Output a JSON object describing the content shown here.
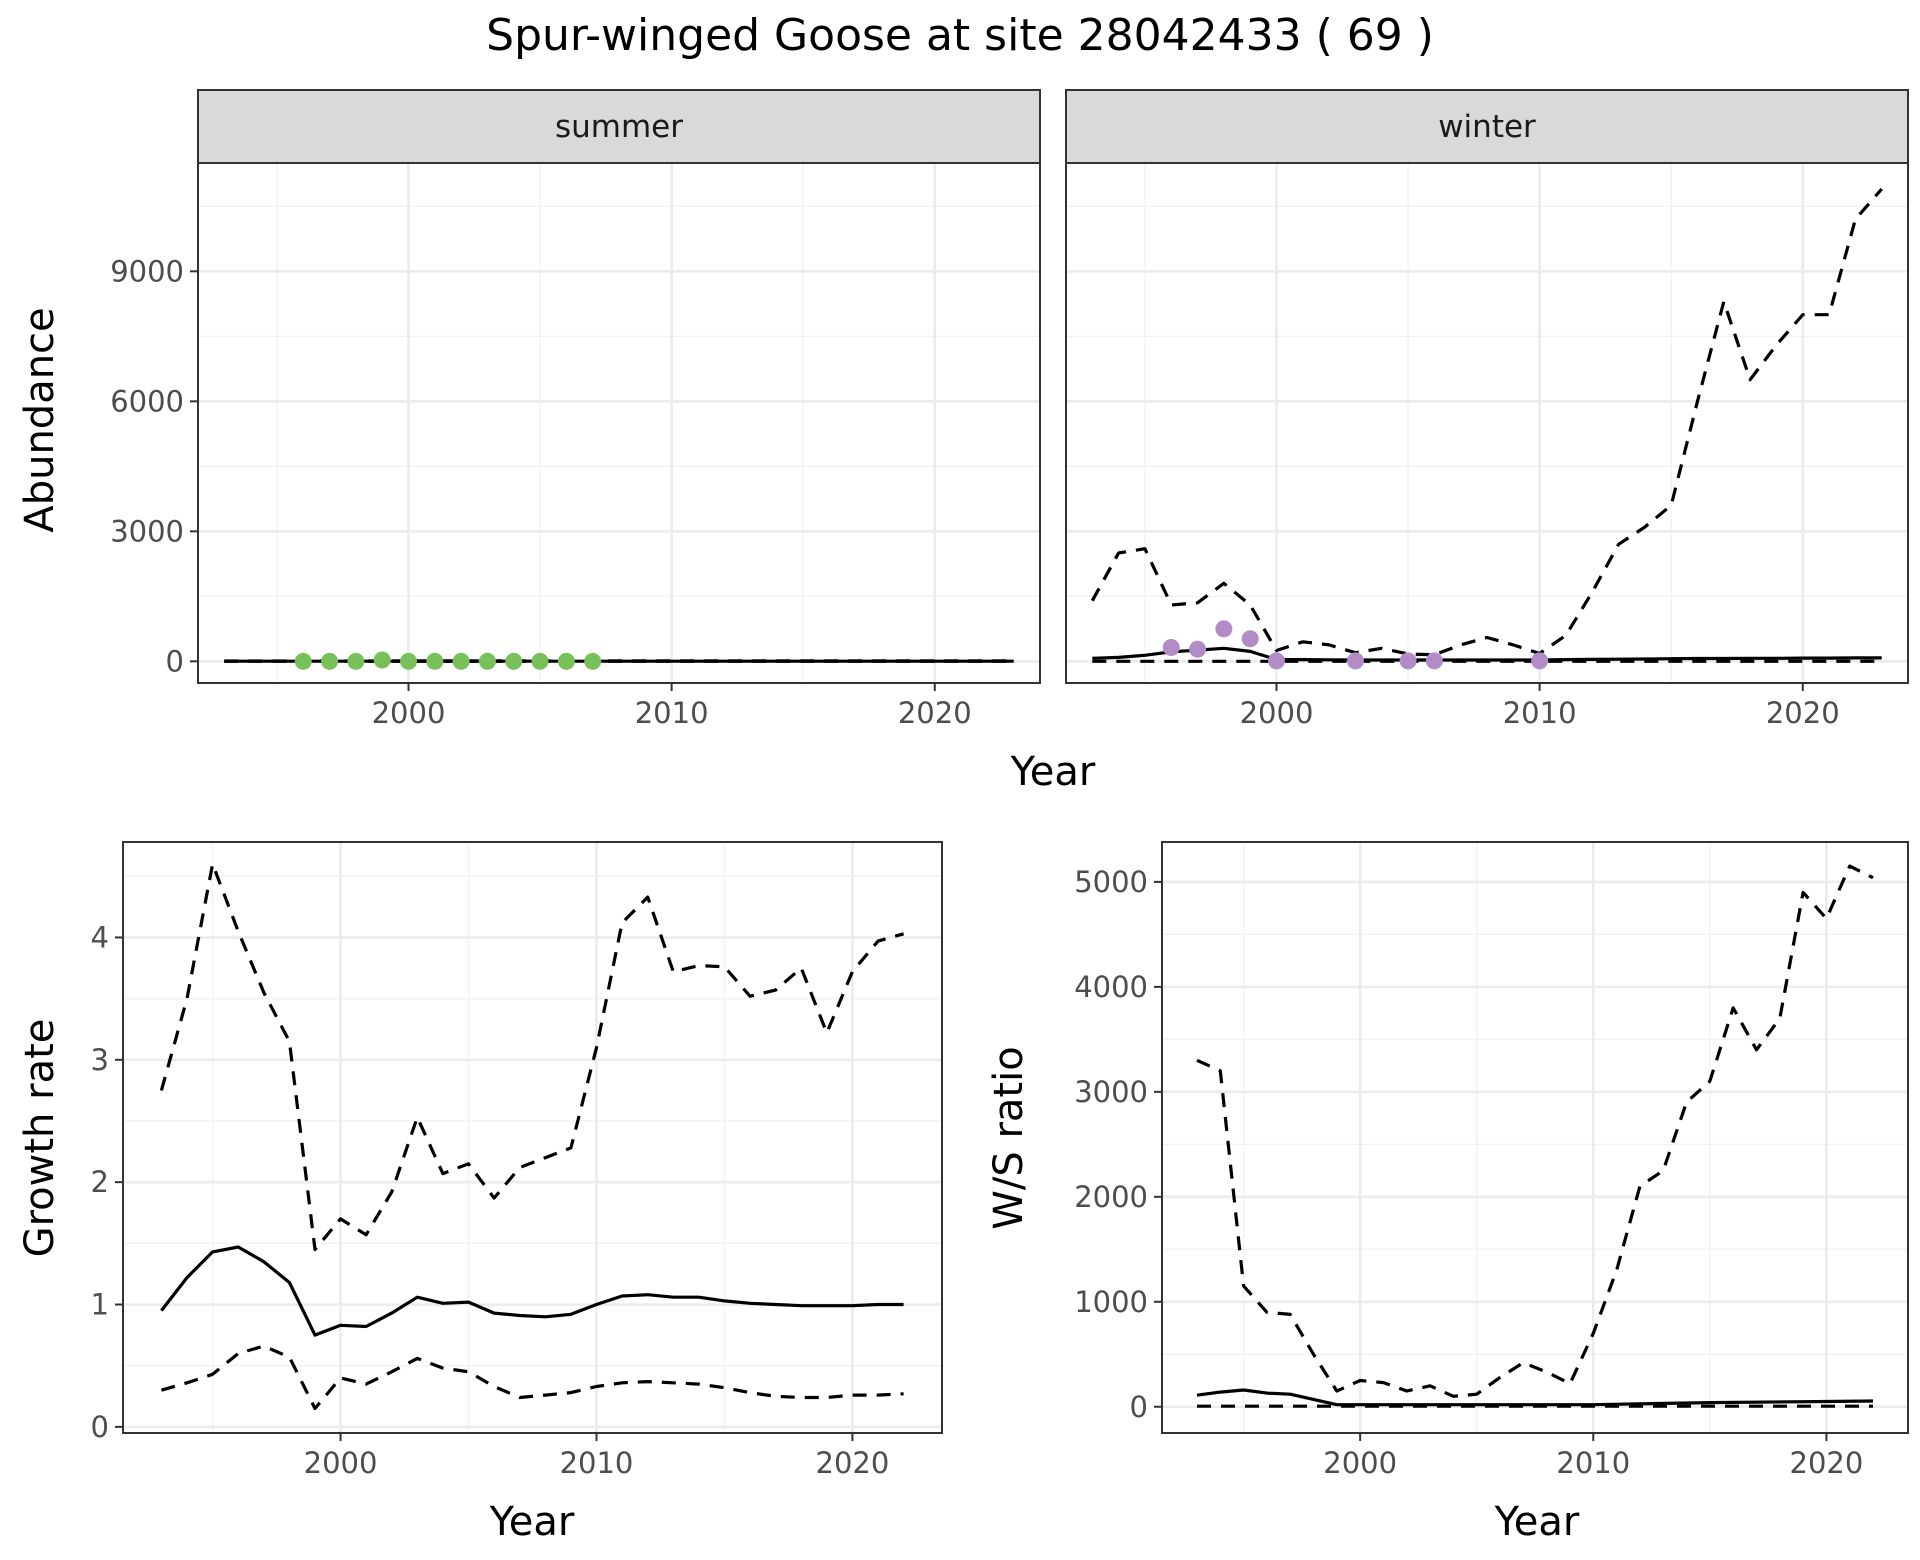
{
  "title": "Spur-winged Goose at site 28042433 ( 69 )",
  "colors": {
    "summer_points": "#78c15a",
    "winter_points": "#b28cc6",
    "lines": "#000000"
  },
  "chart_data": [
    {
      "id": "abundance-summer",
      "type": "line",
      "facet": "summer",
      "ylabel": "Abundance",
      "xlabel": "Year",
      "xlim": [
        1992,
        2024
      ],
      "ylim": [
        -500,
        11500
      ],
      "x_ticks": [
        2000,
        2010,
        2020
      ],
      "y_ticks": [
        0,
        3000,
        6000,
        9000
      ],
      "grid": true,
      "series": [
        {
          "style": "estimate",
          "x": [
            1993,
            1995,
            2000,
            2005,
            2010,
            2015,
            2020,
            2023
          ],
          "y": [
            2,
            2,
            3,
            3,
            3,
            3,
            3,
            3
          ]
        },
        {
          "style": "ci-upper",
          "x": [
            1993,
            1995,
            2000,
            2005,
            2010,
            2015,
            2020,
            2023
          ],
          "y": [
            8,
            8,
            9,
            9,
            9,
            10,
            10,
            10
          ]
        },
        {
          "style": "ci-lower",
          "x": [
            1993,
            2023
          ],
          "y": [
            0,
            0
          ]
        },
        {
          "style": "observed",
          "x": [
            1996,
            1997,
            1998,
            1999,
            2000,
            2001,
            2002,
            2003,
            2004,
            2005,
            2006,
            2007
          ],
          "y": [
            0,
            0,
            0,
            30,
            0,
            0,
            0,
            0,
            0,
            0,
            0,
            0
          ]
        }
      ]
    },
    {
      "id": "abundance-winter",
      "type": "line",
      "facet": "winter",
      "xlabel": "Year",
      "xlim": [
        1992,
        2024
      ],
      "ylim": [
        -500,
        11500
      ],
      "x_ticks": [
        2000,
        2010,
        2020
      ],
      "y_ticks": [
        0,
        3000,
        6000,
        9000
      ],
      "grid": true,
      "series": [
        {
          "style": "estimate",
          "x": [
            1993,
            1994,
            1995,
            1996,
            1997,
            1998,
            1999,
            2000,
            2001,
            2002,
            2003,
            2004,
            2005,
            2006,
            2007,
            2008,
            2009,
            2010,
            2011,
            2012,
            2013,
            2014,
            2015,
            2016,
            2017,
            2018,
            2019,
            2020,
            2021,
            2022,
            2023
          ],
          "y": [
            70,
            90,
            140,
            220,
            260,
            300,
            230,
            40,
            40,
            35,
            30,
            30,
            30,
            30,
            30,
            30,
            30,
            30,
            40,
            45,
            50,
            55,
            60,
            65,
            65,
            70,
            70,
            75,
            75,
            80,
            80
          ]
        },
        {
          "style": "ci-upper",
          "x": [
            1993,
            1994,
            1995,
            1996,
            1997,
            1998,
            1999,
            2000,
            2001,
            2002,
            2003,
            2004,
            2005,
            2006,
            2007,
            2008,
            2009,
            2010,
            2011,
            2012,
            2013,
            2014,
            2015,
            2016,
            2017,
            2018,
            2019,
            2020,
            2021,
            2022,
            2023
          ],
          "y": [
            1400,
            2500,
            2600,
            1300,
            1350,
            1800,
            1300,
            250,
            450,
            380,
            200,
            300,
            170,
            150,
            380,
            550,
            380,
            180,
            600,
            1600,
            2700,
            3100,
            3600,
            6000,
            8300,
            6500,
            7300,
            8000,
            8000,
            10200,
            10900
          ]
        },
        {
          "style": "ci-lower",
          "x": [
            1993,
            2000,
            2010,
            2023
          ],
          "y": [
            0,
            0,
            0,
            0
          ]
        },
        {
          "style": "observed",
          "x": [
            1996,
            1997,
            1998,
            1999,
            2000,
            2003,
            2005,
            2006,
            2010
          ],
          "y": [
            320,
            280,
            750,
            520,
            10,
            10,
            10,
            10,
            10
          ]
        }
      ]
    },
    {
      "id": "growth-rate",
      "type": "line",
      "ylabel": "Growth rate",
      "xlabel": "Year",
      "xlim": [
        1991.5,
        2023.5
      ],
      "ylim": [
        -0.05,
        4.78
      ],
      "x_ticks": [
        2000,
        2010,
        2020
      ],
      "y_ticks": [
        0,
        1,
        2,
        3,
        4
      ],
      "grid": true,
      "series": [
        {
          "style": "estimate",
          "x": [
            1993,
            1994,
            1995,
            1996,
            1997,
            1998,
            1999,
            2000,
            2001,
            2002,
            2003,
            2004,
            2005,
            2006,
            2007,
            2008,
            2009,
            2010,
            2011,
            2012,
            2013,
            2014,
            2015,
            2016,
            2017,
            2018,
            2019,
            2020,
            2021,
            2022
          ],
          "y": [
            0.95,
            1.22,
            1.43,
            1.47,
            1.35,
            1.18,
            0.75,
            0.83,
            0.82,
            0.93,
            1.06,
            1.01,
            1.02,
            0.93,
            0.91,
            0.9,
            0.92,
            1.0,
            1.07,
            1.08,
            1.06,
            1.06,
            1.03,
            1.01,
            1.0,
            0.99,
            0.99,
            0.99,
            1.0,
            1.0
          ]
        },
        {
          "style": "ci-upper",
          "x": [
            1993,
            1994,
            1995,
            1996,
            1997,
            1998,
            1999,
            2000,
            2001,
            2002,
            2003,
            2004,
            2005,
            2006,
            2007,
            2008,
            2009,
            2010,
            2011,
            2012,
            2013,
            2014,
            2015,
            2016,
            2017,
            2018,
            2019,
            2020,
            2021,
            2022
          ],
          "y": [
            2.75,
            3.5,
            4.6,
            4.05,
            3.55,
            3.15,
            1.45,
            1.7,
            1.57,
            1.92,
            2.53,
            2.07,
            2.15,
            1.87,
            2.12,
            2.2,
            2.28,
            3.1,
            4.12,
            4.33,
            3.72,
            3.77,
            3.76,
            3.52,
            3.57,
            3.75,
            3.22,
            3.72,
            3.97,
            4.03
          ]
        },
        {
          "style": "ci-lower",
          "x": [
            1993,
            1994,
            1995,
            1996,
            1997,
            1998,
            1999,
            2000,
            2001,
            2002,
            2003,
            2004,
            2005,
            2006,
            2007,
            2008,
            2009,
            2010,
            2011,
            2012,
            2013,
            2014,
            2015,
            2016,
            2017,
            2018,
            2019,
            2020,
            2021,
            2022
          ],
          "y": [
            0.3,
            0.36,
            0.43,
            0.6,
            0.66,
            0.57,
            0.15,
            0.4,
            0.35,
            0.45,
            0.56,
            0.48,
            0.45,
            0.33,
            0.24,
            0.26,
            0.28,
            0.33,
            0.36,
            0.37,
            0.36,
            0.35,
            0.32,
            0.28,
            0.25,
            0.24,
            0.24,
            0.26,
            0.26,
            0.27
          ]
        }
      ]
    },
    {
      "id": "ws-ratio",
      "type": "line",
      "ylabel": "W/S ratio",
      "xlabel": "Year",
      "xlim": [
        1991.5,
        2023.5
      ],
      "ylim": [
        -250,
        5380
      ],
      "x_ticks": [
        2000,
        2010,
        2020
      ],
      "y_ticks": [
        0,
        1000,
        2000,
        3000,
        4000,
        5000
      ],
      "grid": true,
      "series": [
        {
          "style": "estimate",
          "x": [
            1993,
            1994,
            1995,
            1996,
            1997,
            1998,
            1999,
            2000,
            2005,
            2010,
            2015,
            2020,
            2022
          ],
          "y": [
            110,
            140,
            160,
            130,
            120,
            70,
            20,
            20,
            20,
            20,
            40,
            50,
            55
          ]
        },
        {
          "style": "ci-upper",
          "x": [
            1993,
            1994,
            1995,
            1996,
            1997,
            1998,
            1999,
            2000,
            2001,
            2002,
            2003,
            2004,
            2005,
            2006,
            2007,
            2008,
            2009,
            2010,
            2011,
            2012,
            2013,
            2014,
            2015,
            2016,
            2017,
            2018,
            2019,
            2020,
            2021,
            2022
          ],
          "y": [
            3300,
            3200,
            1150,
            900,
            880,
            500,
            150,
            250,
            230,
            150,
            200,
            100,
            120,
            280,
            420,
            330,
            220,
            700,
            1300,
            2100,
            2250,
            2900,
            3100,
            3800,
            3400,
            3700,
            4900,
            4650,
            5150,
            5040
          ]
        },
        {
          "style": "ci-lower",
          "x": [
            1993,
            2022
          ],
          "y": [
            5,
            5
          ]
        }
      ]
    }
  ],
  "facets": {
    "summer": "summer",
    "winter": "winter"
  }
}
